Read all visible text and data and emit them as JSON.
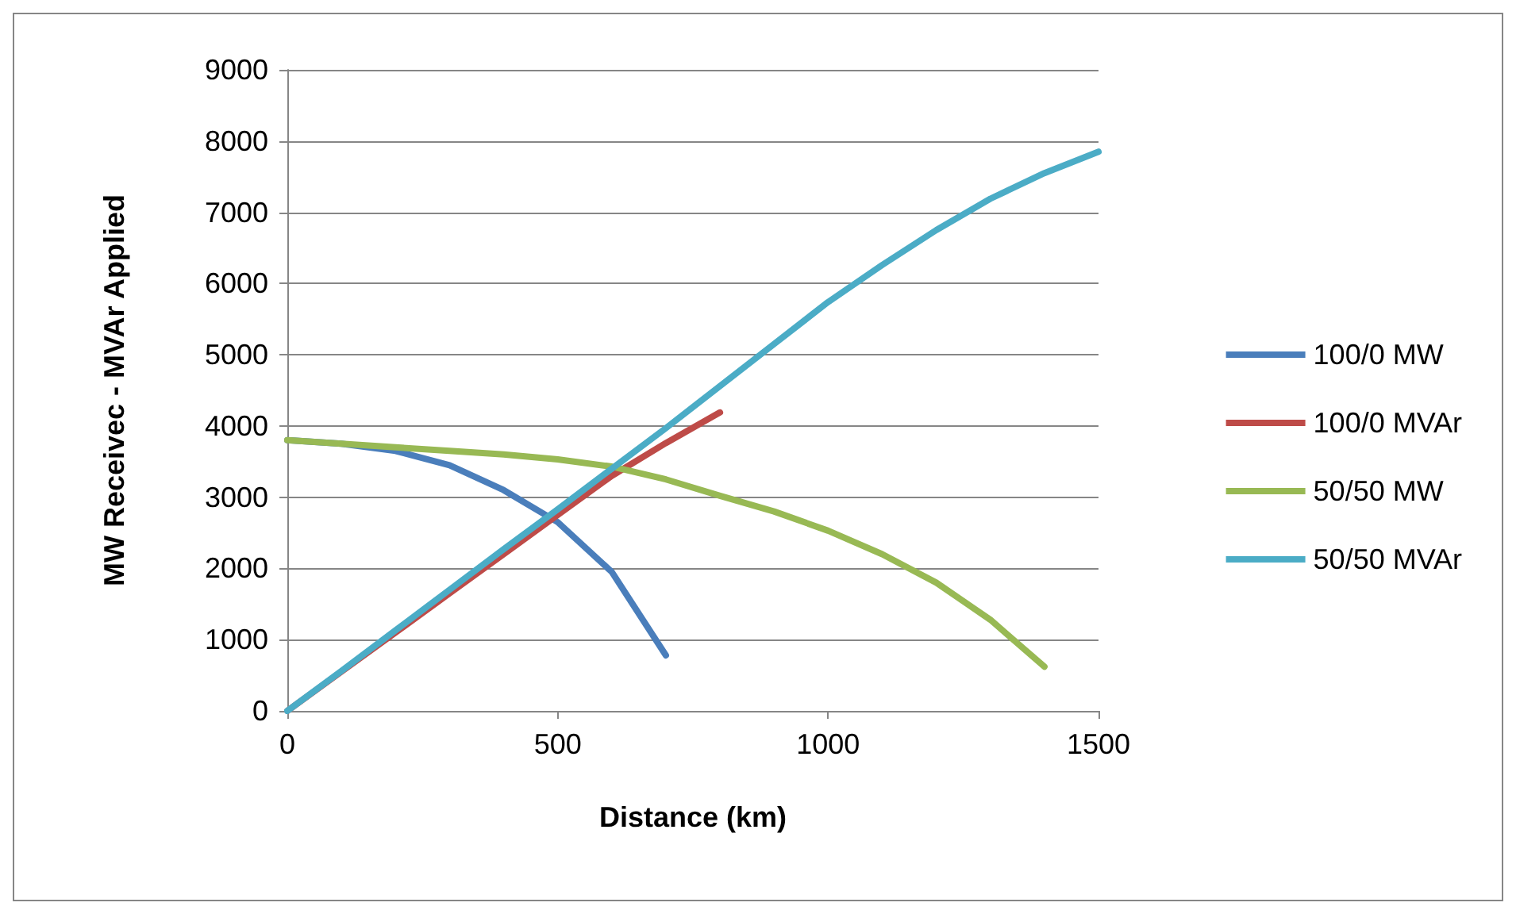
{
  "chart_data": {
    "type": "line",
    "xlabel": "Distance (km)",
    "ylabel": "MW Receivec - MVAr Applied",
    "xlim": [
      0,
      1500
    ],
    "xticks": [
      0,
      500,
      1000,
      1500
    ],
    "ylim": [
      0,
      9000
    ],
    "yticks": [
      0,
      1000,
      2000,
      3000,
      4000,
      5000,
      6000,
      7000,
      8000,
      9000
    ],
    "grid": "y",
    "legend": "right",
    "marker": "none",
    "line_style": "solid",
    "series": [
      {
        "name": "100/0 MW",
        "color": "#4a7ebb",
        "x": [
          0,
          100,
          200,
          300,
          400,
          500,
          600,
          700
        ],
        "values": [
          3800,
          3750,
          3650,
          3450,
          3100,
          2650,
          1950,
          780
        ]
      },
      {
        "name": "100/0 MVAr",
        "color": "#be4b48",
        "x": [
          0,
          100,
          200,
          300,
          400,
          500,
          600,
          700,
          800
        ],
        "values": [
          0,
          550,
          1100,
          1650,
          2200,
          2750,
          3300,
          3760,
          4190
        ]
      },
      {
        "name": "50/50 MW",
        "color": "#98b954",
        "x": [
          0,
          100,
          200,
          300,
          400,
          500,
          600,
          700,
          800,
          900,
          1000,
          1100,
          1200,
          1300,
          1400
        ],
        "values": [
          3800,
          3750,
          3700,
          3650,
          3600,
          3530,
          3430,
          3250,
          3020,
          2800,
          2530,
          2200,
          1800,
          1280,
          620
        ]
      },
      {
        "name": "50/50 MVAr",
        "color": "#4bacc6",
        "x": [
          0,
          100,
          200,
          300,
          400,
          500,
          600,
          700,
          800,
          900,
          1000,
          1100,
          1200,
          1300,
          1400,
          1500
        ],
        "values": [
          0,
          560,
          1130,
          1700,
          2270,
          2830,
          3400,
          3970,
          4560,
          5150,
          5740,
          6260,
          6750,
          7190,
          7550,
          7850
        ]
      }
    ]
  }
}
